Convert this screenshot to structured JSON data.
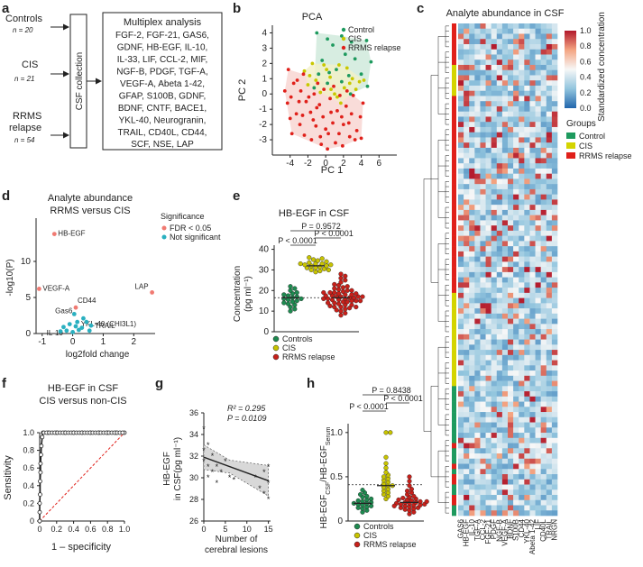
{
  "panel_labels": [
    "a",
    "b",
    "c",
    "d",
    "e",
    "f",
    "g",
    "h"
  ],
  "panel_a": {
    "groups": [
      {
        "name": "Controls",
        "n": "n = 20"
      },
      {
        "name": "CIS",
        "n": "n = 21"
      },
      {
        "name": "RRMS",
        "name2": "relapse",
        "n": "n = 54"
      }
    ],
    "csf_box": "CSF collection",
    "multiplex_title": "Multiplex analysis",
    "multiplex_lines": [
      "FGF-2, FGF-21, GAS6,",
      "GDNF, HB-EGF, IL-10,",
      "IL-33, LIF, CCL-2, MIF,",
      "NGF-B, PDGF, TGF-A,",
      "VEGF-A, Abeta 1-42,",
      "GFAP, S100B, GDNF,",
      "BDNF, CNTF, BACE1,",
      "YKL-40, Neurogranin,",
      "TRAIL, CD40L, CD44,",
      "SCF, NSE, LAP"
    ]
  },
  "chart_data": [
    {
      "id": "b",
      "type": "scatter",
      "title": "PCA",
      "xlabel": "PC 1",
      "ylabel": "PC 2",
      "xlim": [
        -6,
        8
      ],
      "ylim": [
        -4,
        4.5
      ],
      "xticks": [
        "-4",
        "-2",
        "0",
        "2",
        "4",
        "6"
      ],
      "yticks": [
        "-3",
        "-2",
        "-1",
        "0",
        "1",
        "2",
        "3",
        "4"
      ],
      "legend": [
        "Control",
        "CIS",
        "RRMS relapse"
      ],
      "colors": {
        "control": "#1e9a5e",
        "cis": "#c8c800",
        "rrms": "#e0201a",
        "control_fill": "#cde9d9",
        "rrms_fill": "#f8d3d0",
        "cis_fill": "#f2f0c8"
      },
      "series": [
        {
          "name": "Control",
          "points": [
            [
              -1,
              4.0
            ],
            [
              0.2,
              3.6
            ],
            [
              1.8,
              3.8
            ],
            [
              2.9,
              3.4
            ],
            [
              4.6,
              3.5
            ],
            [
              0.8,
              3.2
            ],
            [
              2.2,
              2.6
            ],
            [
              3.3,
              2.3
            ],
            [
              -0.4,
              2.2
            ],
            [
              1.2,
              1.6
            ],
            [
              0.4,
              1.4
            ],
            [
              2.6,
              1.2
            ],
            [
              4.0,
              1.3
            ],
            [
              5.1,
              2.1
            ],
            [
              -0.8,
              1.3
            ],
            [
              1.8,
              0.8
            ],
            [
              0.2,
              0.7
            ],
            [
              4.7,
              0.5
            ],
            [
              -1.3,
              0.4
            ],
            [
              2.8,
              0.0
            ]
          ]
        },
        {
          "name": "CIS",
          "points": [
            [
              -2.4,
              1.5
            ],
            [
              -1.8,
              1.2
            ],
            [
              -0.2,
              1.9
            ],
            [
              0.5,
              1.1
            ],
            [
              1.5,
              1.9
            ],
            [
              2.4,
              1.7
            ],
            [
              -1.1,
              0.9
            ],
            [
              0.6,
              0.3
            ],
            [
              2.1,
              0.4
            ],
            [
              3.4,
              0.3
            ],
            [
              -0.6,
              0.1
            ],
            [
              1.0,
              0.0
            ],
            [
              3.8,
              0.8
            ],
            [
              -2.0,
              0.6
            ],
            [
              2.7,
              0.7
            ],
            [
              1.3,
              -0.2
            ],
            [
              0.1,
              1.6
            ],
            [
              1.7,
              -0.6
            ],
            [
              3.0,
              1.0
            ],
            [
              -1.5,
              2.0
            ],
            [
              4.3,
              0.9
            ]
          ]
        },
        {
          "name": "RRMS relapse",
          "points": [
            [
              -4.2,
              1.6
            ],
            [
              -3.6,
              0.7
            ],
            [
              -2.8,
              0.2
            ],
            [
              -4.3,
              -0.6
            ],
            [
              -3.3,
              -1.3
            ],
            [
              -2.2,
              -0.5
            ],
            [
              -1.7,
              -1.2
            ],
            [
              -2.9,
              -2.0
            ],
            [
              -3.8,
              -2.6
            ],
            [
              -4.0,
              -1.6
            ],
            [
              -1.3,
              0.0
            ],
            [
              -0.7,
              -0.7
            ],
            [
              -0.3,
              -1.5
            ],
            [
              -1.1,
              -2.1
            ],
            [
              -2.4,
              -2.7
            ],
            [
              -1.6,
              -3.0
            ],
            [
              0.3,
              -2.6
            ],
            [
              0.8,
              -1.9
            ],
            [
              1.3,
              -1.1
            ],
            [
              0.5,
              -0.3
            ],
            [
              1.6,
              -0.1
            ],
            [
              2.3,
              -0.8
            ],
            [
              2.0,
              -2.0
            ],
            [
              2.9,
              -1.3
            ],
            [
              3.5,
              -2.4
            ],
            [
              3.9,
              -1.5
            ],
            [
              4.2,
              -0.6
            ],
            [
              2.7,
              -2.8
            ],
            [
              1.1,
              -3.2
            ],
            [
              -0.5,
              -3.3
            ],
            [
              0.2,
              -3.6
            ],
            [
              -3.2,
              0.9
            ],
            [
              -2.5,
              1.3
            ],
            [
              -0.9,
              0.7
            ],
            [
              0.9,
              0.5
            ],
            [
              3.1,
              -0.1
            ],
            [
              1.8,
              -1.5
            ],
            [
              -1.9,
              -0.2
            ],
            [
              -0.2,
              0.3
            ],
            [
              2.4,
              0.2
            ],
            [
              -3.0,
              -0.5
            ],
            [
              -4.6,
              0.2
            ],
            [
              0.0,
              -2.3
            ],
            [
              1.5,
              -2.6
            ],
            [
              3.3,
              -3.0
            ],
            [
              -1.0,
              -0.9
            ],
            [
              0.6,
              -1.2
            ],
            [
              2.6,
              -1.9
            ],
            [
              -2.6,
              -1.4
            ],
            [
              -3.9,
              -0.2
            ],
            [
              4.0,
              -2.9
            ],
            [
              -0.6,
              -2.8
            ],
            [
              1.9,
              -3.4
            ],
            [
              -1.4,
              -1.7
            ]
          ]
        }
      ]
    },
    {
      "id": "c",
      "type": "heatmap",
      "title": "Analyte abundance in CSF",
      "colorbar": {
        "min": 0.0,
        "max": 1.0,
        "ticks": [
          "0.0",
          "0.2",
          "0.4",
          "0.6",
          "0.8",
          "1.0"
        ],
        "label": "Standardized concentration"
      },
      "legend_title": "Groups",
      "legend": [
        "Control",
        "CIS",
        "RRMS relapse"
      ],
      "columns": [
        "GAS6",
        "HB-EGF",
        "IL-10",
        "TGF-A",
        "CCL-2",
        "FGF-21",
        "PDGF",
        "NGF-B",
        "VEGF-A",
        "BDNF",
        "S100B",
        "CD44",
        "YKL-40",
        "Abeta 1-42",
        "LIF",
        "CD40L",
        "TRAIL",
        "NRGN"
      ],
      "row_groups": {
        "rrms": 54,
        "cis": 21,
        "control": 20
      }
    },
    {
      "id": "d",
      "type": "scatter",
      "title": "Analyte abundance",
      "subtitle": "RRMS versus CIS",
      "xlabel": "log2fold change",
      "ylabel": "-log10(P)",
      "xlim": [
        -1.2,
        2.7
      ],
      "ylim": [
        0,
        16
      ],
      "xticks": [
        -1,
        0,
        1,
        2
      ],
      "yticks": [
        0,
        5,
        10
      ],
      "legend_title": "Significance",
      "legend": [
        "FDR < 0.05",
        "Not significant"
      ],
      "colors": {
        "sig": "#f07a72",
        "ns": "#2ab0c0"
      },
      "points": [
        {
          "label": "HB-EGF",
          "x": -0.6,
          "y": 13.8,
          "sig": true
        },
        {
          "label": "VEGF-A",
          "x": -1.1,
          "y": 6.2,
          "sig": true
        },
        {
          "label": "LAP",
          "x": 2.6,
          "y": 5.7,
          "sig": true
        },
        {
          "label": "CD44",
          "x": 0.1,
          "y": 3.6,
          "sig": true
        },
        {
          "label": "Gas6",
          "x": 0.05,
          "y": 2.7,
          "sig": false
        },
        {
          "label": "YKL-40 (CHI3L1)",
          "x": 0.15,
          "y": 1.6,
          "sig": false
        },
        {
          "label": "TRAIL",
          "x": 0.6,
          "y": 1.1,
          "sig": false
        },
        {
          "label": "IL-10",
          "x": -0.2,
          "y": 0.4,
          "sig": false
        },
        {
          "label": "",
          "x": -0.3,
          "y": 0.9,
          "sig": false
        },
        {
          "label": "",
          "x": -0.1,
          "y": 1.3,
          "sig": false
        },
        {
          "label": "",
          "x": 0.3,
          "y": 0.8,
          "sig": false
        },
        {
          "label": "",
          "x": 0.45,
          "y": 1.6,
          "sig": false
        },
        {
          "label": "",
          "x": 0.2,
          "y": 0.5,
          "sig": false
        },
        {
          "label": "",
          "x": 0.0,
          "y": 0.2,
          "sig": false
        },
        {
          "label": "",
          "x": -0.4,
          "y": 0.3,
          "sig": false
        },
        {
          "label": "",
          "x": 0.35,
          "y": 2.1,
          "sig": false
        },
        {
          "label": "",
          "x": 0.1,
          "y": 1.0,
          "sig": false
        },
        {
          "label": "",
          "x": 0.55,
          "y": 0.4,
          "sig": false
        }
      ]
    },
    {
      "id": "e",
      "type": "scatter",
      "title": "HB-EGF in CSF",
      "ylabel": "Concentration",
      "ylabel2": "(pg ml⁻¹)",
      "ylim": [
        0,
        42
      ],
      "yticks": [
        0,
        10,
        20,
        30,
        40
      ],
      "groups": [
        {
          "name": "Controls",
          "color": "#1e8a50",
          "mean": 16.5,
          "values": [
            10,
            11,
            12,
            13,
            13.5,
            14,
            14.5,
            15,
            15.5,
            16,
            16,
            16.5,
            17,
            17.5,
            18,
            18.5,
            19,
            20,
            21,
            22
          ]
        },
        {
          "name": "CIS",
          "color": "#c8c400",
          "mean": 32.0,
          "values": [
            29,
            29.5,
            30,
            30.5,
            31,
            31,
            31.5,
            32,
            32,
            32.5,
            32.5,
            33,
            33,
            33.5,
            34,
            34.5,
            35,
            35.5,
            36,
            30,
            33
          ]
        },
        {
          "name": "RRMS relapse",
          "color": "#c8201a",
          "mean": 16.5,
          "values": [
            8,
            9,
            10,
            10.5,
            11,
            11.5,
            12,
            12,
            12.5,
            13,
            13,
            13.5,
            14,
            14,
            14.5,
            14.5,
            15,
            15,
            15.5,
            15.5,
            16,
            16,
            16,
            16.5,
            16.5,
            17,
            17,
            17,
            17.5,
            17.5,
            18,
            18,
            18.5,
            18.5,
            19,
            19,
            19.5,
            20,
            20,
            20.5,
            21,
            21.5,
            22,
            22.5,
            23,
            24,
            25,
            26,
            27,
            28,
            12,
            15,
            17,
            19
          ]
        }
      ],
      "comparisons": [
        {
          "text": "P = 0.9572",
          "from": 0,
          "to": 2
        },
        {
          "text": "P < 0.0001",
          "from": 1,
          "to": 2
        },
        {
          "text": "P < 0.0001",
          "from": 0,
          "to": 1
        }
      ],
      "reference_line": 16.5
    },
    {
      "id": "f",
      "type": "line",
      "title": "HB-EGF in CSF",
      "subtitle": "CIS versus non-CIS",
      "xlabel": "1 – specificity",
      "ylabel": "Sensitivity",
      "xlim": [
        0,
        1
      ],
      "ylim": [
        0,
        1
      ],
      "xticks": [
        "0",
        "0.2",
        "0.4",
        "0.6",
        "0.8",
        "1.0"
      ],
      "yticks": [
        "0",
        "0.2",
        "0.4",
        "0.6",
        "0.8",
        "1.0"
      ],
      "roc": [
        [
          0,
          0
        ],
        [
          0,
          0.1
        ],
        [
          0,
          0.2
        ],
        [
          0.005,
          0.3
        ],
        [
          0.005,
          0.45
        ],
        [
          0.01,
          0.55
        ],
        [
          0.01,
          0.65
        ],
        [
          0.015,
          0.75
        ],
        [
          0.02,
          0.85
        ],
        [
          0.03,
          0.95
        ],
        [
          0.04,
          1.0
        ],
        [
          0.1,
          1.0
        ],
        [
          0.2,
          1.0
        ],
        [
          0.3,
          1.0
        ],
        [
          0.4,
          1.0
        ],
        [
          0.5,
          1.0
        ],
        [
          0.6,
          1.0
        ],
        [
          0.7,
          1.0
        ],
        [
          0.8,
          1.0
        ],
        [
          0.9,
          1.0
        ],
        [
          1.0,
          1.0
        ]
      ]
    },
    {
      "id": "g",
      "type": "scatter",
      "xlabel": "Number of",
      "xlabel2": "cerebral lesions",
      "ylabel": "HB-EGF",
      "ylabel2": "in CSF(pg ml⁻¹)",
      "xlim": [
        0,
        15.5
      ],
      "ylim": [
        26,
        36
      ],
      "xticks": [
        0,
        5,
        10,
        15
      ],
      "yticks": [
        26,
        28,
        30,
        32,
        34,
        36
      ],
      "annotation": [
        "R² = 0.295",
        "P = 0.0109"
      ],
      "fit": {
        "intercept": 31.9,
        "slope": -0.145
      },
      "points": [
        [
          0,
          34.5
        ],
        [
          0,
          32.5
        ],
        [
          0,
          31.5
        ],
        [
          1,
          33.0
        ],
        [
          1,
          31.0
        ],
        [
          1,
          30.0
        ],
        [
          2,
          32.0
        ],
        [
          2,
          30.5
        ],
        [
          3,
          31.0
        ],
        [
          3,
          29.5
        ],
        [
          4,
          30.5
        ],
        [
          5,
          31.5
        ],
        [
          6,
          30.0
        ],
        [
          7,
          29.8
        ],
        [
          14,
          30.5
        ],
        [
          14,
          28.5
        ],
        [
          15,
          29.5
        ],
        [
          15,
          28.0
        ],
        [
          15,
          31.0
        ],
        [
          13,
          29.0
        ],
        [
          12,
          30.0
        ]
      ]
    },
    {
      "id": "h",
      "type": "scatter",
      "ylabel": "HB-EGF_CSF/HB-EGF_Serum",
      "ylim": [
        0,
        1.1
      ],
      "yticks": [
        "0",
        "0.5",
        "1.0"
      ],
      "groups": [
        {
          "name": "Controls",
          "color": "#1e8a50",
          "mean": 0.2,
          "values": [
            0.1,
            0.12,
            0.14,
            0.15,
            0.16,
            0.17,
            0.18,
            0.19,
            0.2,
            0.2,
            0.21,
            0.22,
            0.23,
            0.24,
            0.25,
            0.27,
            0.28,
            0.3,
            0.32,
            0.35
          ]
        },
        {
          "name": "CIS",
          "color": "#c8c400",
          "mean": 0.4,
          "values": [
            0.25,
            0.28,
            0.3,
            0.32,
            0.34,
            0.36,
            0.38,
            0.4,
            0.4,
            0.42,
            0.44,
            0.46,
            0.48,
            0.5,
            0.52,
            0.55,
            0.6,
            0.65,
            0.72,
            1.0,
            1.0
          ]
        },
        {
          "name": "RRMS relapse",
          "color": "#c8201a",
          "mean": 0.21,
          "values": [
            0.08,
            0.1,
            0.12,
            0.13,
            0.14,
            0.15,
            0.15,
            0.16,
            0.17,
            0.18,
            0.18,
            0.19,
            0.2,
            0.2,
            0.21,
            0.21,
            0.22,
            0.23,
            0.24,
            0.25,
            0.26,
            0.27,
            0.28,
            0.3,
            0.32,
            0.34,
            0.36,
            0.4,
            0.45,
            0.5,
            0.19,
            0.22,
            0.17,
            0.24
          ]
        }
      ],
      "comparisons": [
        {
          "text": "P = 0.8438",
          "from": 0,
          "to": 2
        },
        {
          "text": "P < 0.0001",
          "from": 1,
          "to": 2
        },
        {
          "text": "P < 0.0001",
          "from": 0,
          "to": 1
        }
      ],
      "reference_line": 0.41
    }
  ]
}
